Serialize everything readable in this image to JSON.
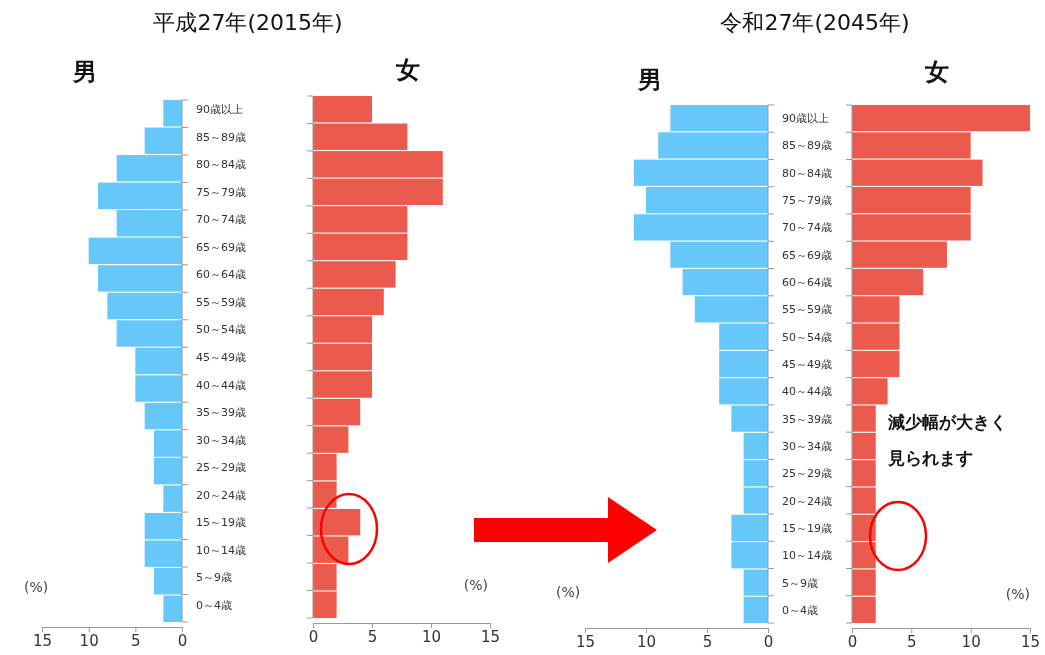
{
  "chart_data": [
    {
      "type": "bar",
      "orientation": "horizontal",
      "title": "平成27年(2015年)",
      "subtitle": "男",
      "xlabel": "(%)",
      "categories": [
        null,
        null,
        null,
        null,
        null,
        null,
        null,
        null,
        null,
        null,
        null,
        null,
        null,
        null,
        null,
        null,
        null,
        null,
        null
      ],
      "values": [
        2,
        4,
        7,
        9,
        7,
        10,
        9,
        8,
        7,
        5,
        5,
        4,
        3,
        3,
        2,
        4,
        4,
        3,
        2
      ],
      "color": "#66c8fa",
      "xlim": [
        15,
        0
      ],
      "xticks": [
        15,
        10,
        5,
        0
      ]
    },
    {
      "type": "bar",
      "orientation": "horizontal",
      "subtitle": "女",
      "xlabel": "(%)",
      "categories": [
        "90歳以上",
        "85～89歳",
        "80～84歳",
        "75～79歳",
        "70～74歳",
        "65～69歳",
        "60～64歳",
        "55～59歳",
        "50～54歳",
        "45～49歳",
        "40～44歳",
        "35～39歳",
        "30～34歳",
        "25～29歳",
        "20～24歳",
        "15～19歳",
        "10～14歳",
        "5～9歳",
        "0～4歳"
      ],
      "values": [
        5,
        8,
        11,
        11,
        8,
        8,
        7,
        6,
        5,
        5,
        5,
        4,
        3,
        2,
        2,
        4,
        3,
        2,
        2
      ],
      "color": "#eb5b4d",
      "xlim": [
        0,
        15
      ],
      "xticks": [
        0,
        5,
        10,
        15
      ]
    },
    {
      "type": "bar",
      "orientation": "horizontal",
      "title": "令和27年(2045年)",
      "subtitle": "男",
      "xlabel": "(%)",
      "categories": [
        null,
        null,
        null,
        null,
        null,
        null,
        null,
        null,
        null,
        null,
        null,
        null,
        null,
        null,
        null,
        null,
        null,
        null,
        null
      ],
      "values": [
        8,
        9,
        11,
        10,
        11,
        8,
        7,
        6,
        4,
        4,
        4,
        3,
        2,
        2,
        2,
        3,
        3,
        2,
        2
      ],
      "color": "#66c8fa",
      "xlim": [
        15,
        0
      ],
      "xticks": [
        15,
        10,
        5,
        0
      ]
    },
    {
      "type": "bar",
      "orientation": "horizontal",
      "subtitle": "女",
      "xlabel": "(%)",
      "annotations": [
        "減少幅が大きく",
        "見られます"
      ],
      "categories": [
        "90歳以上",
        "85～89歳",
        "80～84歳",
        "75～79歳",
        "70～74歳",
        "65～69歳",
        "60～64歳",
        "55～59歳",
        "50～54歳",
        "45～49歳",
        "40～44歳",
        "35～39歳",
        "30～34歳",
        "25～29歳",
        "20～24歳",
        "15～19歳",
        "10～14歳",
        "5～9歳",
        "0～4歳"
      ],
      "values": [
        15,
        10,
        11,
        10,
        10,
        8,
        6,
        4,
        4,
        4,
        3,
        2,
        2,
        2,
        2,
        2,
        2,
        2,
        2
      ],
      "color": "#eb5b4d",
      "xlim": [
        0,
        15
      ],
      "xticks": [
        0,
        5,
        10,
        15
      ]
    }
  ]
}
